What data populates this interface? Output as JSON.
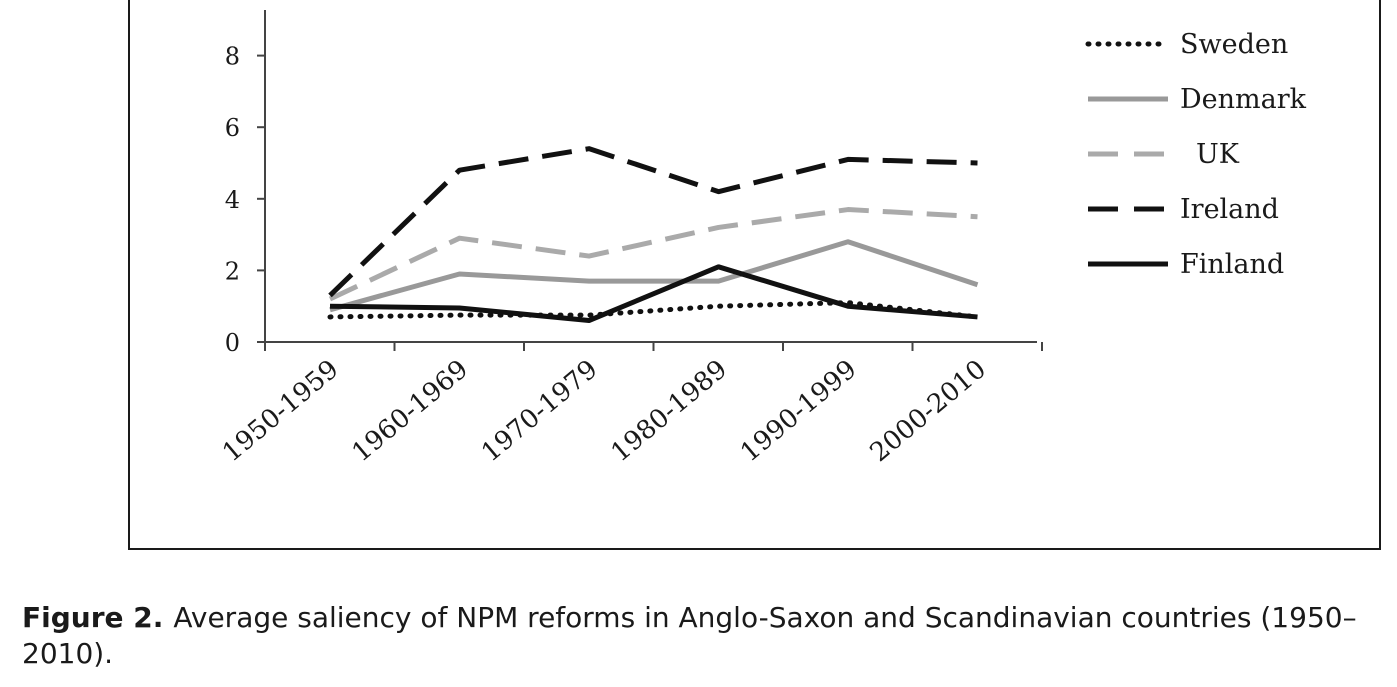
{
  "caption": {
    "label": "Figure 2.",
    "text": "Average saliency of NPM reforms in Anglo-Saxon and Scandinavian countries (1950–2010)."
  },
  "chart_data": {
    "type": "line",
    "title": "",
    "xlabel": "",
    "ylabel": "",
    "ylim": [
      0,
      9
    ],
    "yticks": [
      0,
      2,
      4,
      6,
      8
    ],
    "categories": [
      "1950-1959",
      "1960-1969",
      "1970-1979",
      "1980-1989",
      "1990-1999",
      "2000-2010"
    ],
    "legend_position": "top-right",
    "grid": false,
    "series": [
      {
        "name": "Sweden",
        "values": [
          0.7,
          0.75,
          0.75,
          1.0,
          1.1,
          0.7
        ],
        "color": "#111111",
        "style": "dotted"
      },
      {
        "name": "Denmark",
        "values": [
          0.9,
          1.9,
          1.7,
          1.7,
          2.8,
          1.6
        ],
        "color": "#999999",
        "style": "solid"
      },
      {
        "name": "UK",
        "values": [
          1.2,
          2.9,
          2.4,
          3.2,
          3.7,
          3.5
        ],
        "color": "#aaaaaa",
        "style": "dashed"
      },
      {
        "name": "Ireland",
        "values": [
          1.3,
          4.8,
          5.4,
          4.2,
          5.1,
          5.0
        ],
        "color": "#111111",
        "style": "dashed"
      },
      {
        "name": "Finland",
        "values": [
          1.0,
          0.95,
          0.6,
          2.1,
          1.0,
          0.7
        ],
        "color": "#111111",
        "style": "solid"
      }
    ]
  }
}
